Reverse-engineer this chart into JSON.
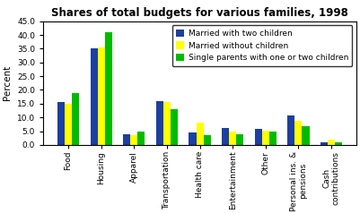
{
  "title": "Shares of total budgets for various families, 1998",
  "ylabel": "Percent",
  "categories": [
    "Food",
    "Housing",
    "Apparel",
    "Transportation",
    "Health care",
    "Entertainment",
    "Other",
    "Personal ins. &\npensions",
    "Cash\ncontributions"
  ],
  "series": [
    {
      "label": "Married with two children",
      "color": "#1C3FA0",
      "values": [
        15.5,
        35.0,
        3.8,
        16.0,
        4.5,
        6.2,
        5.8,
        10.8,
        1.0
      ]
    },
    {
      "label": "Married without children",
      "color": "#FFFF00",
      "values": [
        15.0,
        35.5,
        3.5,
        15.5,
        8.0,
        5.0,
        5.2,
        8.8,
        2.0
      ]
    },
    {
      "label": "Single parents with one or two children",
      "color": "#00BB00",
      "values": [
        18.8,
        41.0,
        4.8,
        13.0,
        3.5,
        3.8,
        5.0,
        6.8,
        0.8
      ]
    }
  ],
  "ylim": [
    0,
    45.0
  ],
  "yticks": [
    0.0,
    5.0,
    10.0,
    15.0,
    20.0,
    25.0,
    30.0,
    35.0,
    40.0,
    45.0
  ],
  "background_color": "#FFFFFF",
  "plot_bg_color": "#FFFFFF",
  "legend_fontsize": 6.5,
  "title_fontsize": 8.5,
  "tick_fontsize": 6.5,
  "ylabel_fontsize": 7.5,
  "bar_width": 0.22
}
